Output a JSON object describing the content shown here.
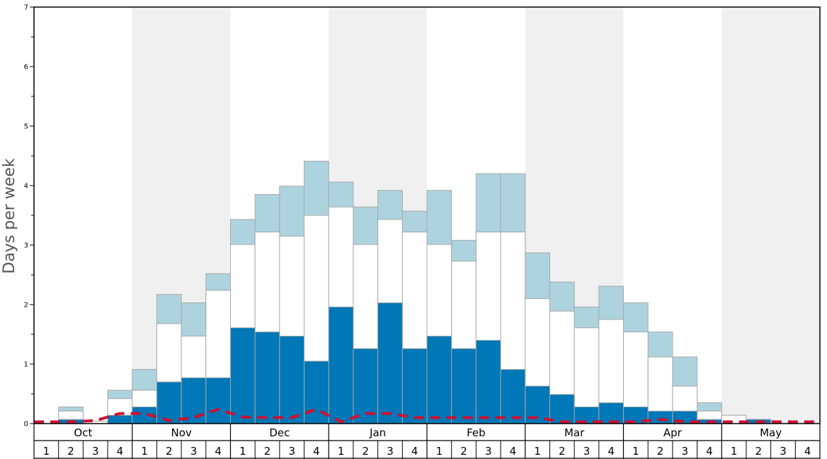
{
  "chart_data": {
    "type": "bar",
    "ylabel": "Days per week",
    "ylim": [
      0,
      7
    ],
    "yticks": [
      "0",
      "1",
      "2",
      "3",
      "4",
      "5",
      "6",
      "7"
    ],
    "months": [
      "Oct",
      "Nov",
      "Dec",
      "Jan",
      "Feb",
      "Mar",
      "Apr",
      "May"
    ],
    "week_labels": [
      "1",
      "2",
      "3",
      "4"
    ],
    "colors": {
      "layer_dark": "#0077b6",
      "layer_white": "#ffffff",
      "layer_light": "#add3df",
      "line": "#cc1133",
      "band": "#f0f0f0",
      "bar_edge": "#a8a8a8"
    },
    "series": [
      {
        "values": [
          0,
          0.07,
          0,
          0.14,
          0.28,
          0.7,
          0.77,
          0.77,
          1.61,
          1.54,
          1.47,
          1.05,
          1.96,
          1.26,
          2.03,
          1.26,
          1.47,
          1.26,
          1.4,
          0.91,
          0.63,
          0.49,
          0.28,
          0.35,
          0.28,
          0.21,
          0.21,
          0.07,
          0,
          0.07,
          0,
          0
        ]
      },
      {
        "values": [
          0,
          0.21,
          0.04,
          0.42,
          0.56,
          1.68,
          1.47,
          2.24,
          3.01,
          3.22,
          3.15,
          3.5,
          3.64,
          3.01,
          3.43,
          3.22,
          3.01,
          2.73,
          3.22,
          3.22,
          2.1,
          1.89,
          1.61,
          1.75,
          1.54,
          1.12,
          0.63,
          0.21,
          0.14,
          0.07,
          0,
          0
        ]
      },
      {
        "values": [
          0,
          0.28,
          0.04,
          0.56,
          0.91,
          2.17,
          2.03,
          2.52,
          3.43,
          3.85,
          3.99,
          4.41,
          4.06,
          3.64,
          3.92,
          3.57,
          3.92,
          3.08,
          4.2,
          4.2,
          2.87,
          2.38,
          1.96,
          2.31,
          2.03,
          1.54,
          1.12,
          0.35,
          0.14,
          0.07,
          0,
          0
        ]
      },
      {
        "values": [
          0.03,
          0.03,
          0.05,
          0.17,
          0.17,
          0.05,
          0.1,
          0.24,
          0.11,
          0.1,
          0.1,
          0.24,
          0.03,
          0.17,
          0.17,
          0.1,
          0.1,
          0.1,
          0.1,
          0.1,
          0.1,
          0.03,
          0.03,
          0.03,
          0.03,
          0.07,
          0.03,
          0.03,
          0.03,
          0.03,
          0.03,
          0.03
        ]
      }
    ]
  }
}
